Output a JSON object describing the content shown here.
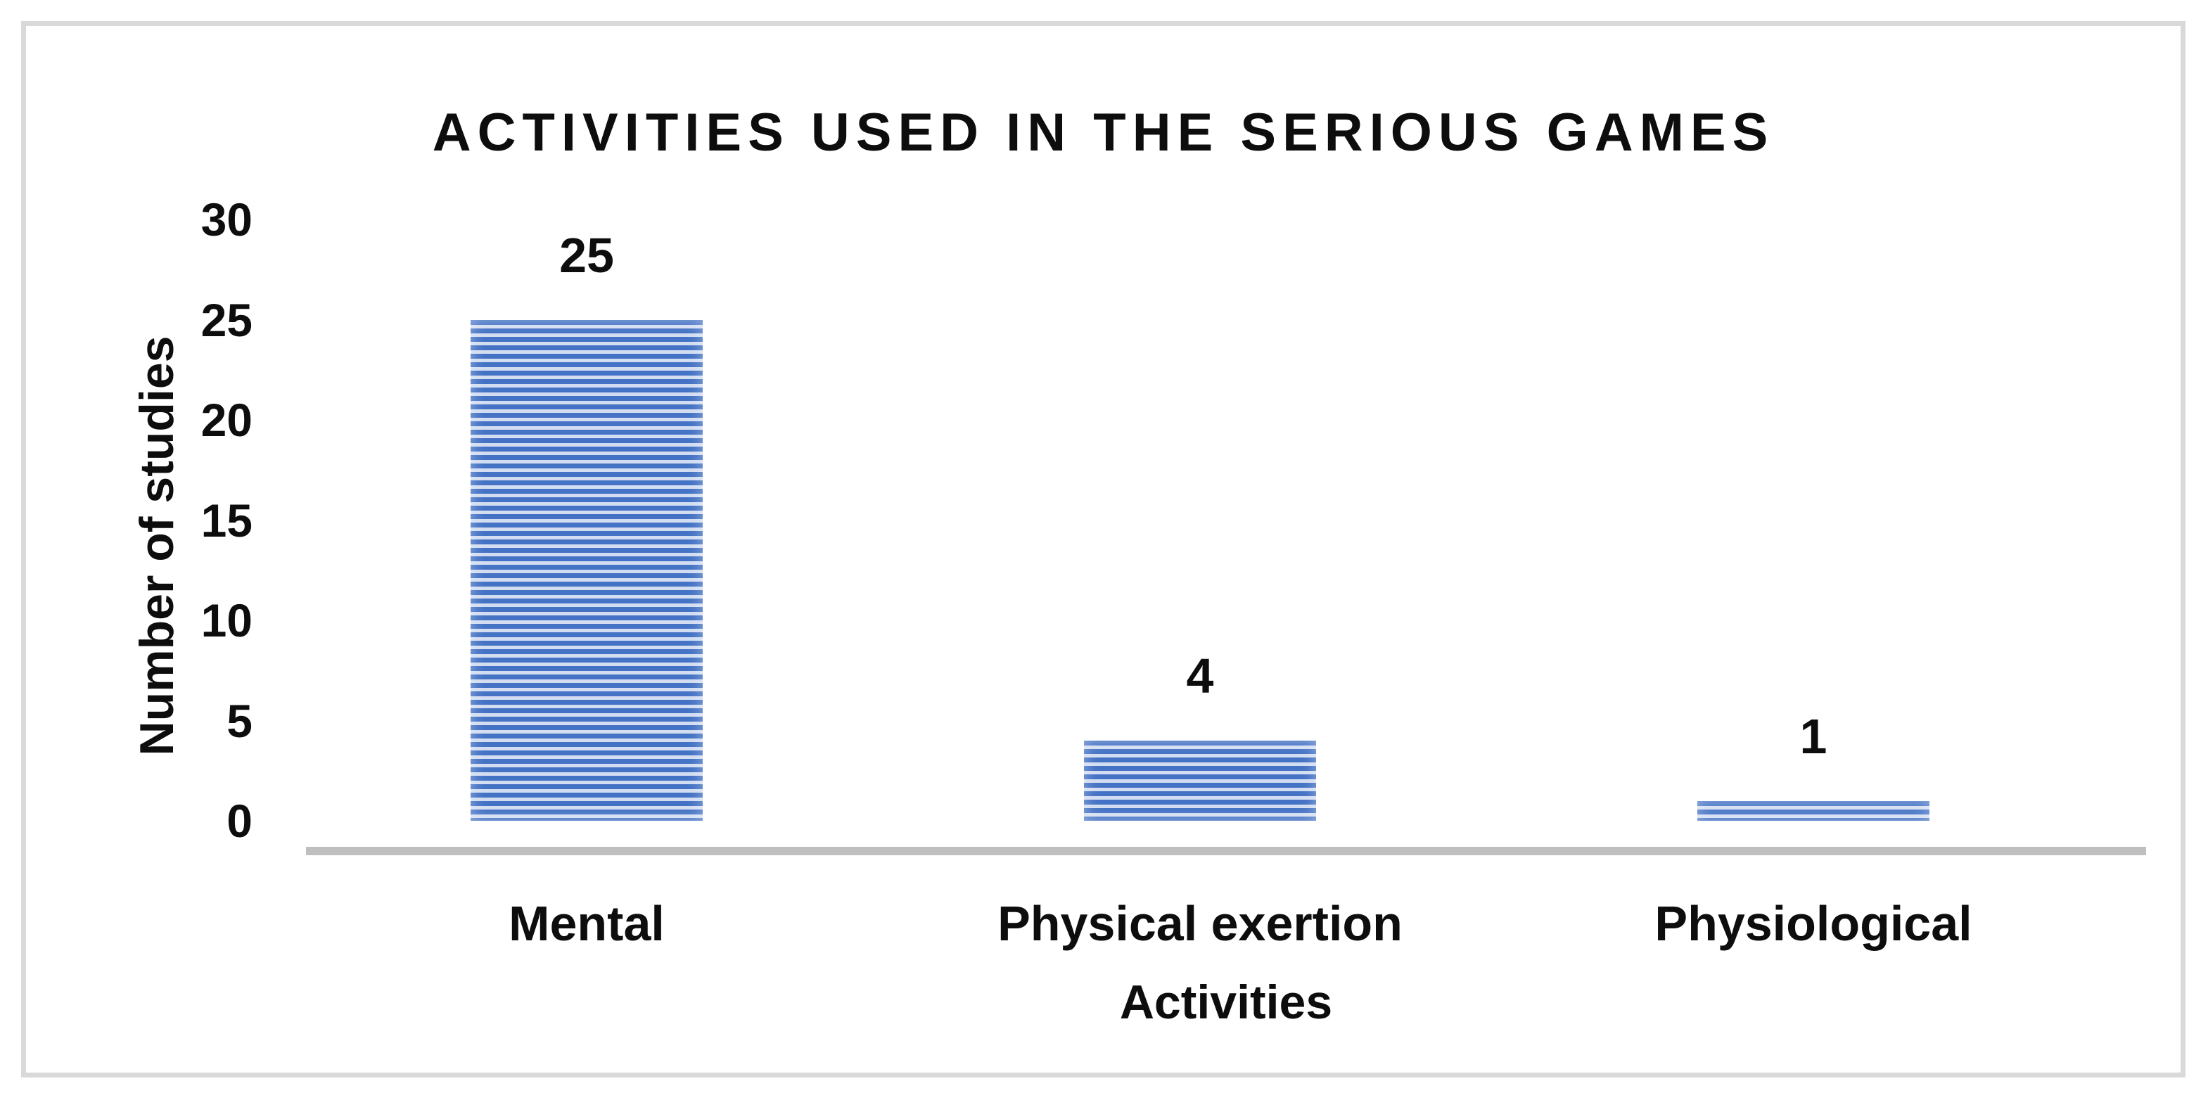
{
  "chart_data": {
    "type": "bar",
    "title": "ACTIVITIES USED IN THE SERIOUS GAMES",
    "categories": [
      "Mental",
      "Physical exertion",
      "Physiological"
    ],
    "values": [
      25,
      4,
      1
    ],
    "data_labels": [
      "25",
      "4",
      "1"
    ],
    "xlabel": "Activities",
    "ylabel": "Number of studies",
    "yticks": [
      30,
      25,
      20,
      15,
      10,
      5,
      0
    ],
    "ylim": [
      0,
      30
    ],
    "grid": false,
    "legend": false,
    "bar_pattern": "horizontal-stripes",
    "colors": {
      "bar_stripe_blue": "#4472c4",
      "bar_stripe_light": "#d3ddf2",
      "axis_line": "#bfbfbf",
      "frame_border": "#d9d9d9",
      "text": "#0d0d0d",
      "background": "#ffffff"
    }
  }
}
